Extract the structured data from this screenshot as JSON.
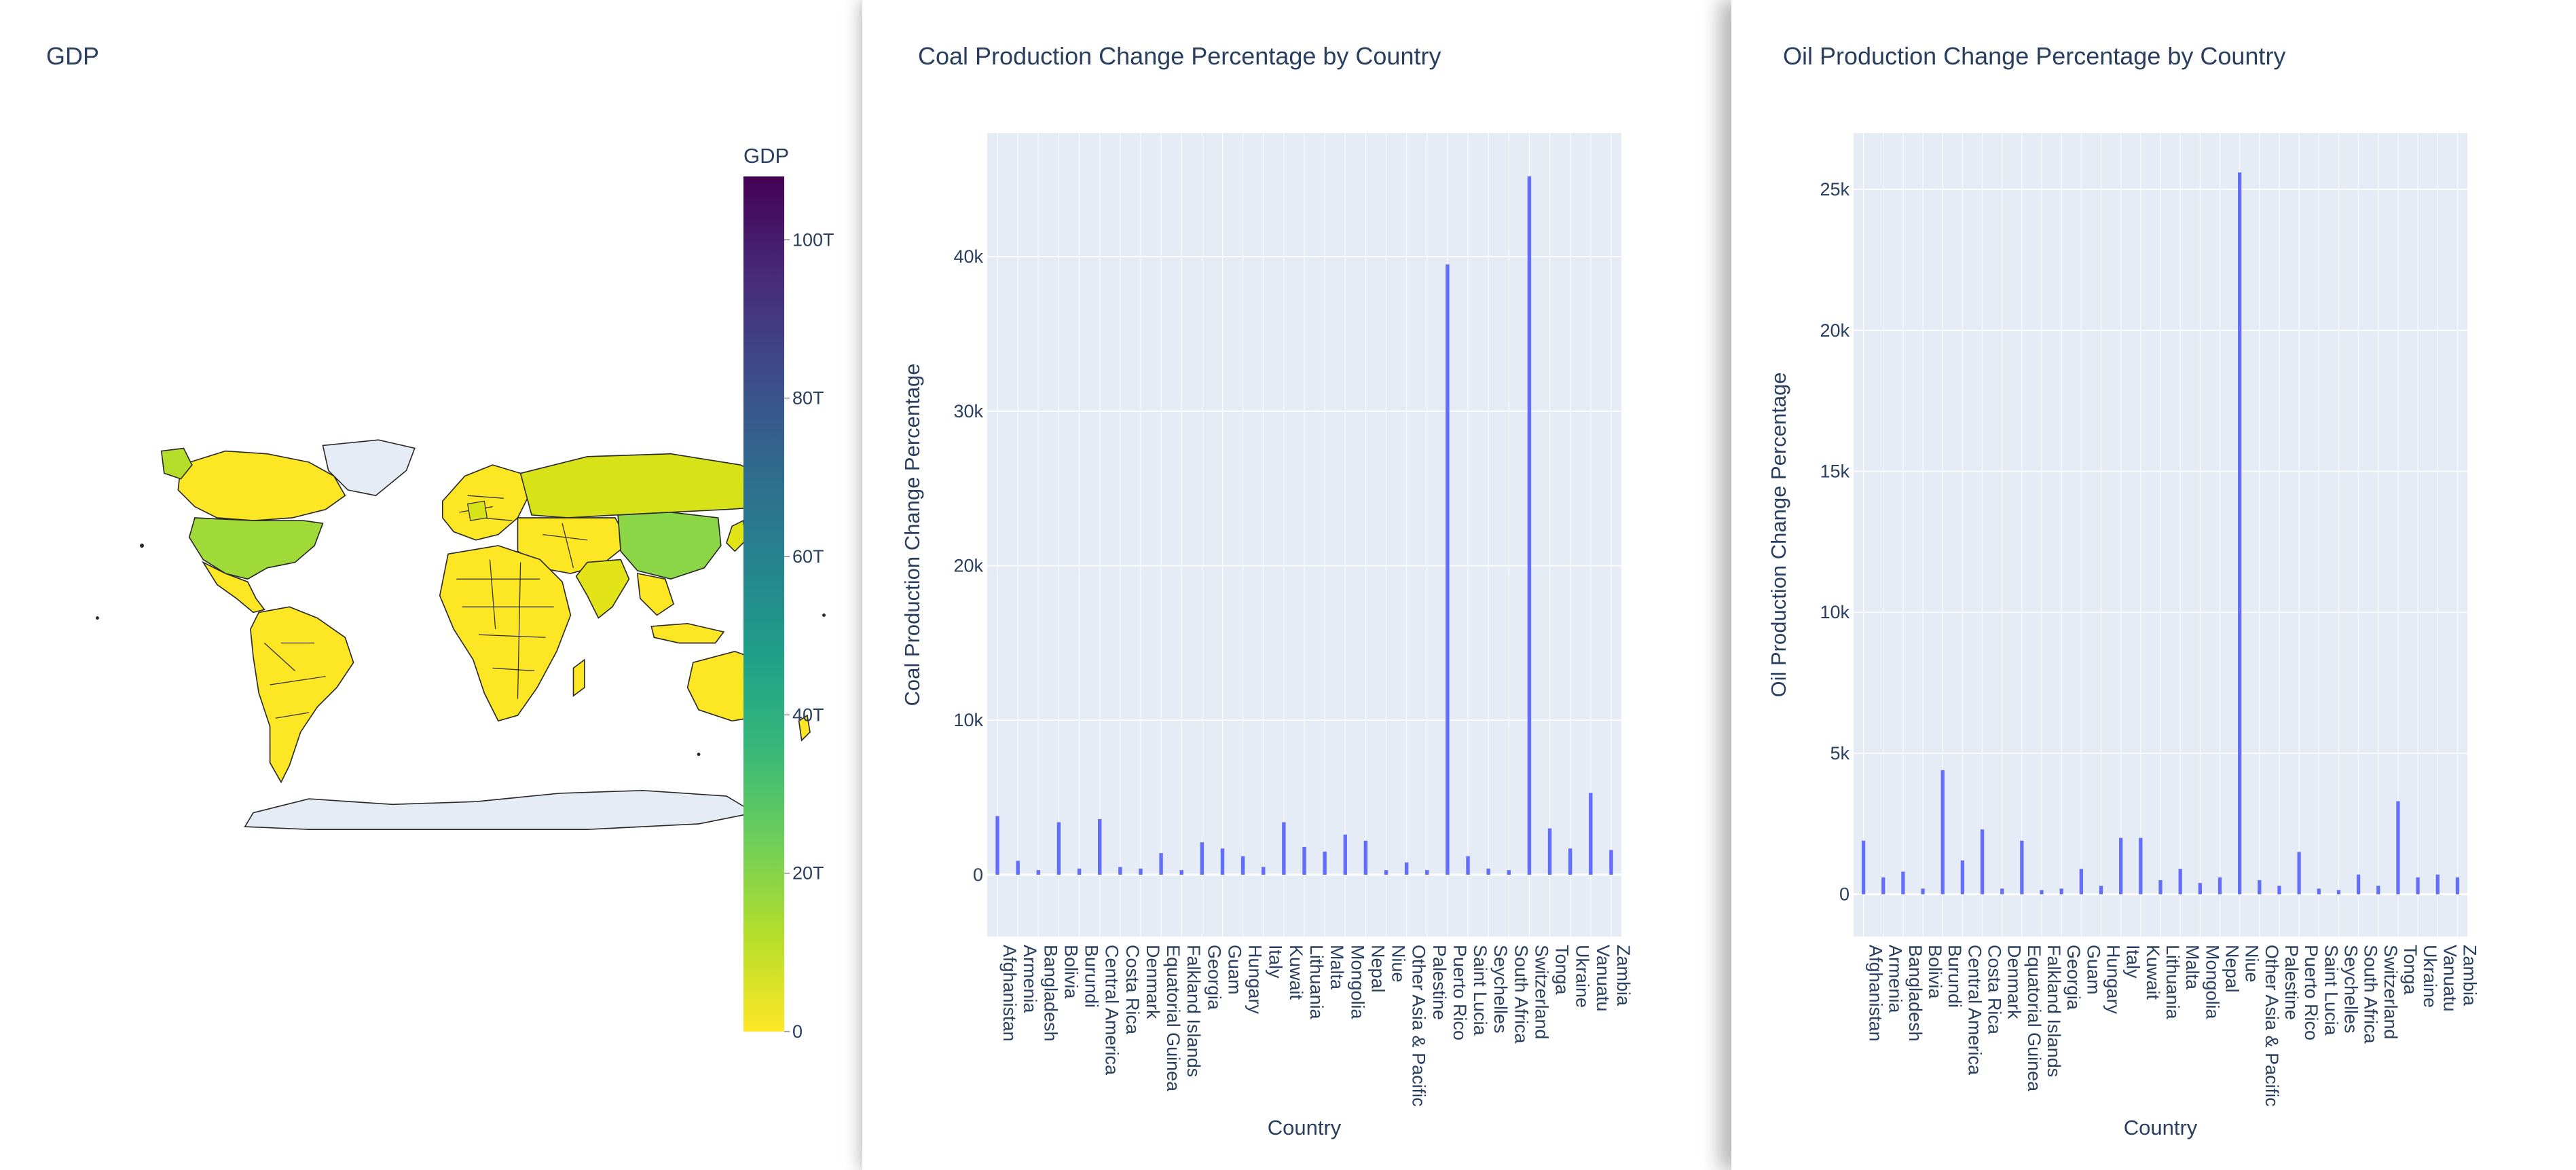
{
  "colors": {
    "plot_bg": "#e5ecf6",
    "bar": "#636efa",
    "grid": "#ffffff",
    "land_missing": "#e5ecf6",
    "colorscale": [
      "#fde725",
      "#b5de2b",
      "#6ece58",
      "#35b779",
      "#1f9e89",
      "#26828e",
      "#31688e",
      "#3e4989",
      "#482878",
      "#440154"
    ]
  },
  "map": {
    "title": "GDP",
    "colorbar": {
      "title": "GDP",
      "range": [
        0,
        108
      ],
      "ticks": [
        {
          "v": 0,
          "label": "0"
        },
        {
          "v": 20,
          "label": "20T"
        },
        {
          "v": 40,
          "label": "40T"
        },
        {
          "v": 60,
          "label": "60T"
        },
        {
          "v": 80,
          "label": "80T"
        },
        {
          "v": 100,
          "label": "100T"
        }
      ]
    }
  },
  "chart_data": [
    {
      "type": "bar",
      "title": "Coal Production Change Percentage by Country",
      "xlabel": "Country",
      "ylabel": "Coal Production Change Percentage",
      "ylim": [
        -4000,
        48000
      ],
      "yticks": [
        {
          "v": 0,
          "label": "0"
        },
        {
          "v": 10000,
          "label": "10k"
        },
        {
          "v": 20000,
          "label": "20k"
        },
        {
          "v": 30000,
          "label": "30k"
        },
        {
          "v": 40000,
          "label": "40k"
        }
      ],
      "grid": true,
      "categories": [
        "Afghanistan",
        "Armenia",
        "Bangladesh",
        "Bolivia",
        "Burundi",
        "Central America",
        "Costa Rica",
        "Denmark",
        "Equatorial Guinea",
        "Falkland Islands",
        "Georgia",
        "Guam",
        "Hungary",
        "Italy",
        "Kuwait",
        "Lithuania",
        "Malta",
        "Mongolia",
        "Nepal",
        "Niue",
        "Other Asia & Pacific",
        "Palestine",
        "Puerto Rico",
        "Saint Lucia",
        "Seychelles",
        "South Africa",
        "Switzerland",
        "Tonga",
        "Ukraine",
        "Vanuatu",
        "Zambia"
      ],
      "values": [
        3800,
        900,
        300,
        3400,
        400,
        3600,
        500,
        400,
        1400,
        300,
        2100,
        1700,
        1200,
        500,
        3400,
        1800,
        1500,
        2600,
        2200,
        300,
        800,
        300,
        39500,
        1200,
        400,
        300,
        45200,
        3000,
        1700,
        5300,
        1600
      ]
    },
    {
      "type": "bar",
      "title": "Oil Production Change Percentage by Country",
      "xlabel": "Country",
      "ylabel": "Oil Production Change Percentage",
      "ylim": [
        -1500,
        27000
      ],
      "yticks": [
        {
          "v": 0,
          "label": "0"
        },
        {
          "v": 5000,
          "label": "5k"
        },
        {
          "v": 10000,
          "label": "10k"
        },
        {
          "v": 15000,
          "label": "15k"
        },
        {
          "v": 20000,
          "label": "20k"
        },
        {
          "v": 25000,
          "label": "25k"
        }
      ],
      "grid": true,
      "categories": [
        "Afghanistan",
        "Armenia",
        "Bangladesh",
        "Bolivia",
        "Burundi",
        "Central America",
        "Costa Rica",
        "Denmark",
        "Equatorial Guinea",
        "Falkland Islands",
        "Georgia",
        "Guam",
        "Hungary",
        "Italy",
        "Kuwait",
        "Lithuania",
        "Malta",
        "Mongolia",
        "Nepal",
        "Niue",
        "Other Asia & Pacific",
        "Palestine",
        "Puerto Rico",
        "Saint Lucia",
        "Seychelles",
        "South Africa",
        "Switzerland",
        "Tonga",
        "Ukraine",
        "Vanuatu",
        "Zambia"
      ],
      "values": [
        1900,
        600,
        800,
        200,
        4400,
        1200,
        2300,
        200,
        1900,
        150,
        200,
        900,
        300,
        2000,
        2000,
        500,
        900,
        400,
        600,
        25600,
        500,
        300,
        1500,
        200,
        150,
        700,
        300,
        3300,
        600,
        700,
        600
      ]
    }
  ]
}
